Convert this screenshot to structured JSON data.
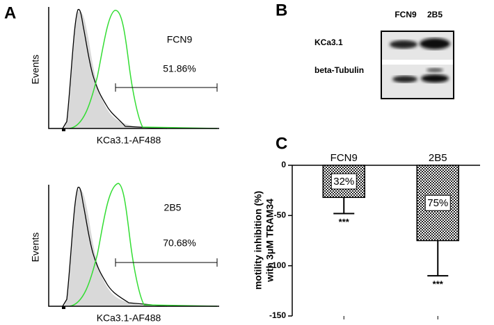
{
  "panel_labels": [
    "A",
    "B",
    "C"
  ],
  "flow": [
    {
      "sample": "FCN9",
      "percent": "51.86%",
      "x_label": "KCa3.1-AF488",
      "y_label": "Events"
    },
    {
      "sample": "2B5",
      "percent": "70.68%",
      "x_label": "KCa3.1-AF488",
      "y_label": "Events"
    }
  ],
  "blot": {
    "lanes": [
      "FCN9",
      "2B5"
    ],
    "bands": [
      "KCa3.1",
      "beta-Tubulin"
    ]
  },
  "chart_data": {
    "type": "bar",
    "y_label": [
      "motility inhibition (%)",
      "with 3μM TRAM34"
    ],
    "categories": [
      "FCN9",
      "2B5"
    ],
    "values": [
      -32,
      -75
    ],
    "value_labels": [
      "32%",
      "75%"
    ],
    "errors": [
      16,
      35
    ],
    "significance": [
      "***",
      "***"
    ],
    "ylim": [
      -150,
      0
    ],
    "yticks": [
      -150,
      -100,
      -50,
      0
    ]
  }
}
